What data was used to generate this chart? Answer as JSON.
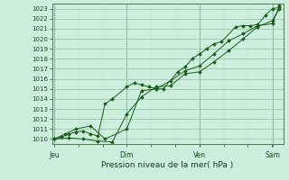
{
  "xlabel": "Pression niveau de la mer( hPa )",
  "background_color": "#cceedd",
  "plot_bg_color": "#cceedd",
  "grid_major_color": "#99bbaa",
  "grid_minor_color": "#bbddcc",
  "line_color": "#1a5c1a",
  "ylim": [
    1009.5,
    1023.5
  ],
  "yticks": [
    1010,
    1011,
    1012,
    1013,
    1014,
    1015,
    1016,
    1017,
    1018,
    1019,
    1020,
    1021,
    1022,
    1023
  ],
  "xtick_labels": [
    "Jeu",
    "Dim",
    "Ven",
    "Sam"
  ],
  "xtick_positions": [
    0.0,
    0.333,
    0.667,
    1.0
  ],
  "xlim": [
    -0.01,
    1.05
  ],
  "series1_x": [
    0.0,
    0.033,
    0.067,
    0.1,
    0.133,
    0.167,
    0.2,
    0.233,
    0.267,
    0.333,
    0.367,
    0.4,
    0.433,
    0.467,
    0.5,
    0.567,
    0.6,
    0.633,
    0.667,
    0.7,
    0.733,
    0.767,
    0.833,
    0.867,
    0.9,
    0.933,
    0.967,
    1.0,
    1.033
  ],
  "series1_y": [
    1010.0,
    1010.2,
    1010.5,
    1010.7,
    1010.8,
    1010.5,
    1010.3,
    1013.5,
    1014.0,
    1015.2,
    1015.6,
    1015.4,
    1015.2,
    1015.0,
    1015.0,
    1016.7,
    1017.2,
    1018.0,
    1018.5,
    1019.0,
    1019.5,
    1019.7,
    1021.2,
    1021.3,
    1021.3,
    1021.4,
    1022.3,
    1023.0,
    1023.1
  ],
  "series2_x": [
    0.0,
    0.05,
    0.1,
    0.167,
    0.233,
    0.333,
    0.4,
    0.467,
    0.533,
    0.6,
    0.667,
    0.733,
    0.8,
    0.867,
    0.933,
    1.0,
    1.033
  ],
  "series2_y": [
    1010.0,
    1010.5,
    1011.0,
    1011.3,
    1010.0,
    1011.0,
    1014.8,
    1015.0,
    1015.8,
    1016.8,
    1017.3,
    1018.5,
    1019.8,
    1020.5,
    1021.3,
    1021.5,
    1023.3
  ],
  "series3_x": [
    0.0,
    0.067,
    0.133,
    0.2,
    0.267,
    0.333,
    0.4,
    0.467,
    0.533,
    0.6,
    0.667,
    0.733,
    0.8,
    0.867,
    0.933,
    1.0,
    1.033
  ],
  "series3_y": [
    1010.0,
    1010.1,
    1010.0,
    1009.8,
    1009.7,
    1012.5,
    1014.2,
    1015.2,
    1015.3,
    1016.5,
    1016.7,
    1017.7,
    1018.8,
    1020.0,
    1021.2,
    1021.8,
    1023.0
  ]
}
